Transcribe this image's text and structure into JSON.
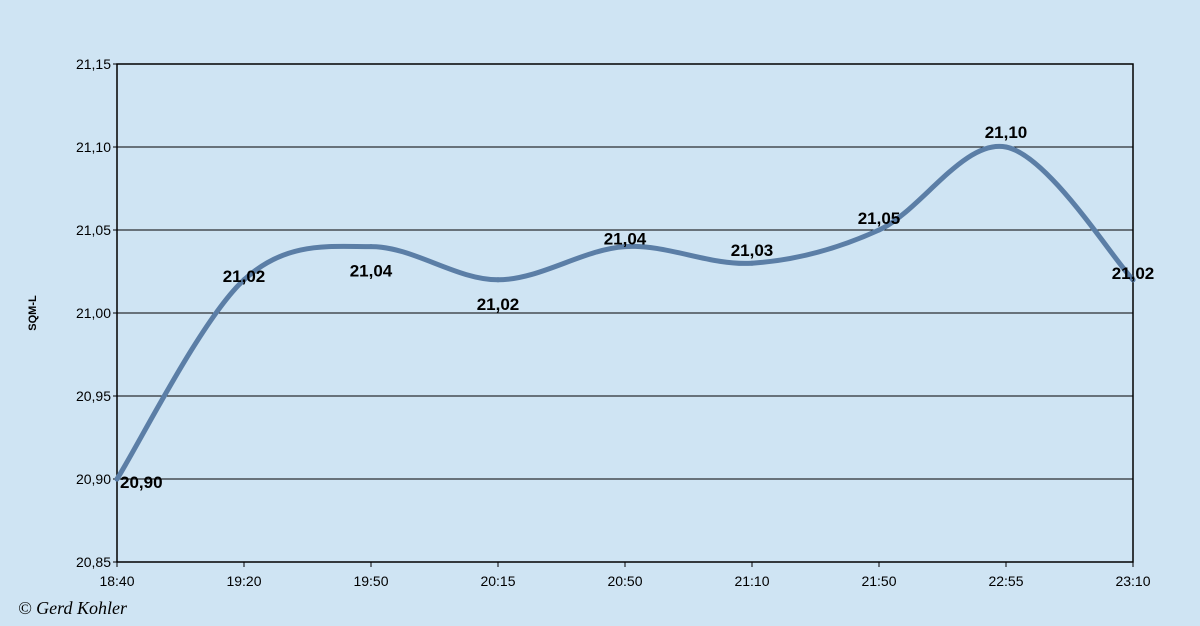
{
  "chart_data": {
    "type": "line",
    "title": "",
    "xlabel": "",
    "ylabel": "SQM-L",
    "ylim": [
      20.85,
      21.15
    ],
    "yticks": [
      "20,85",
      "20,90",
      "20,95",
      "21,00",
      "21,05",
      "21,10",
      "21,15"
    ],
    "categories": [
      "18:40",
      "19:20",
      "19:50",
      "20:15",
      "20:50",
      "21:10",
      "21:50",
      "22:55",
      "23:10"
    ],
    "values": [
      20.9,
      21.02,
      21.04,
      21.02,
      21.04,
      21.03,
      21.05,
      21.1,
      21.02
    ],
    "data_labels": [
      "20,90",
      "21,02",
      "21,04",
      "21,02",
      "21,04",
      "21,03",
      "21,05",
      "21,10",
      "21,02"
    ],
    "grid": true,
    "line_color": "#5b7ea6",
    "background_color": "#cfe4f3"
  },
  "copyright": "© Gerd Kohler"
}
